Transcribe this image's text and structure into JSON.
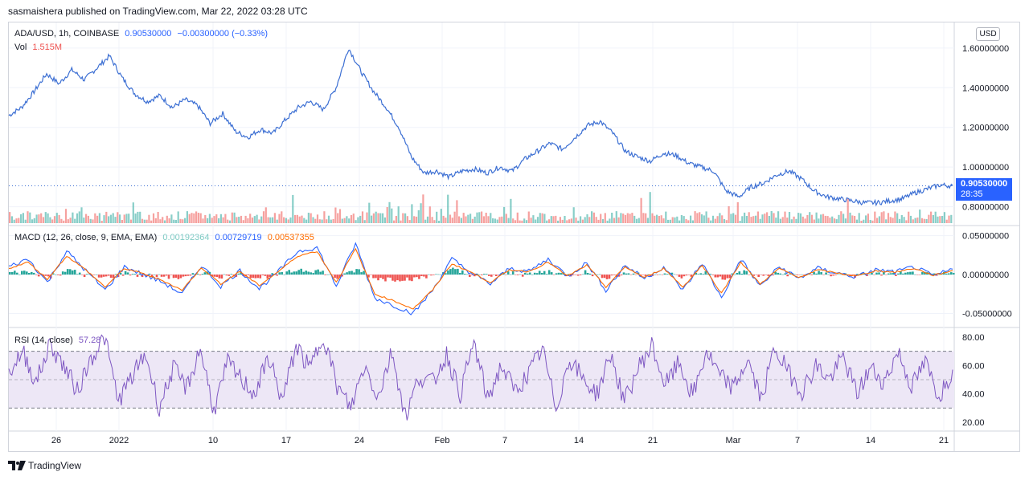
{
  "header": {
    "published": "sasmaishera published on TradingView.com, Mar 22, 2022 03:28 UTC"
  },
  "legend_price": {
    "symbol": "ADA/USD, 1h, COINBASE",
    "last": "0.90530000",
    "change": "−0.00300000 (−0.33%)"
  },
  "legend_vol": {
    "label": "Vol",
    "value": "1.515M"
  },
  "legend_macd": {
    "label": "MACD (12, 26, close, 9, EMA, EMA)",
    "hist": "0.00192364",
    "macd": "0.00729719",
    "signal": "0.00537355"
  },
  "legend_rsi": {
    "label": "RSI (14, close)",
    "value": "57.28"
  },
  "currency_badge": "USD",
  "last_price_tag": {
    "price": "0.90530000",
    "countdown": "28:35"
  },
  "brand": {
    "name": "TradingView"
  },
  "colors": {
    "price_line": "#3c6fd3",
    "macd_line": "#2962ff",
    "signal_line": "#ff6d00",
    "hist_up": "#26a69a",
    "hist_down": "#ef5350",
    "rsi_line": "#7e57c2",
    "rsi_band": "#ede7f6"
  },
  "chart_data": [
    {
      "type": "line",
      "title": "ADA/USD, 1h, COINBASE",
      "x_ticks": [
        "26",
        "2022",
        "10",
        "17",
        "24",
        "Feb",
        "7",
        "14",
        "21",
        "Mar",
        "7",
        "14",
        "21"
      ],
      "y_ticks": [
        "1.60000000",
        "1.40000000",
        "1.20000000",
        "1.00000000",
        "0.80000000"
      ],
      "ylim": [
        0.77,
        1.66
      ],
      "last_value": 0.9053,
      "series": [
        {
          "values": [
            1.26,
            1.3,
            1.38,
            1.47,
            1.42,
            1.49,
            1.44,
            1.5,
            1.56,
            1.45,
            1.37,
            1.33,
            1.36,
            1.3,
            1.34,
            1.31,
            1.22,
            1.27,
            1.18,
            1.15,
            1.19,
            1.17,
            1.24,
            1.3,
            1.33,
            1.29,
            1.4,
            1.6,
            1.48,
            1.38,
            1.3,
            1.2,
            1.05,
            0.97,
            0.98,
            0.95,
            0.98,
            0.99,
            0.97,
            1.0,
            0.98,
            1.04,
            1.08,
            1.12,
            1.09,
            1.15,
            1.21,
            1.23,
            1.17,
            1.08,
            1.05,
            1.03,
            1.07,
            1.06,
            1.02,
            1.0,
            0.98,
            0.88,
            0.85,
            0.9,
            0.92,
            0.96,
            0.98,
            0.94,
            0.88,
            0.85,
            0.84,
            0.83,
            0.82,
            0.82,
            0.83,
            0.84,
            0.87,
            0.89,
            0.91,
            0.905
          ]
        }
      ]
    },
    {
      "type": "bar",
      "title": "Vol",
      "last_value": "1.515M"
    },
    {
      "type": "line",
      "title": "MACD (12, 26, close, 9, EMA, EMA)",
      "y_ticks": [
        "0.05000000",
        "0.00000000",
        "-0.05000000"
      ],
      "ylim": [
        -0.065,
        0.06
      ],
      "series": [
        {
          "name": "MACD",
          "values": [
            0.01,
            0.02,
            -0.01,
            0.03,
            0.005,
            -0.02,
            0.01,
            0.0,
            -0.01,
            -0.025,
            0.012,
            -0.015,
            0.005,
            -0.018,
            0.004,
            0.03,
            0.035,
            -0.015,
            0.04,
            -0.03,
            -0.04,
            -0.05,
            -0.02,
            0.02,
            0.002,
            -0.012,
            0.008,
            0.004,
            0.02,
            -0.002,
            0.015,
            -0.02,
            0.012,
            -0.005,
            0.01,
            -0.02,
            0.015,
            -0.03,
            0.02,
            -0.015,
            0.01,
            -0.005,
            0.008,
            0.002,
            -0.003,
            0.006,
            0.003,
            0.01,
            -0.002,
            0.007
          ]
        },
        {
          "name": "Signal",
          "values": [
            0.008,
            0.016,
            -0.006,
            0.024,
            0.006,
            -0.016,
            0.008,
            0.001,
            -0.008,
            -0.02,
            0.009,
            -0.012,
            0.004,
            -0.014,
            0.004,
            0.024,
            0.03,
            -0.01,
            0.033,
            -0.025,
            -0.034,
            -0.044,
            -0.02,
            0.014,
            0.003,
            -0.01,
            0.006,
            0.004,
            0.016,
            -0.002,
            0.012,
            -0.016,
            0.01,
            -0.004,
            0.008,
            -0.016,
            0.012,
            -0.024,
            0.016,
            -0.012,
            0.008,
            -0.004,
            0.006,
            0.002,
            -0.002,
            0.005,
            0.003,
            0.008,
            -0.001,
            0.005
          ]
        }
      ]
    },
    {
      "type": "line",
      "title": "RSI (14, close)",
      "y_ticks": [
        "80.00",
        "60.00",
        "40.00",
        "20.00"
      ],
      "ylim": [
        15,
        85
      ],
      "bands": [
        30,
        50,
        70
      ],
      "series": [
        {
          "name": "RSI",
          "values": [
            55,
            70,
            48,
            75,
            60,
            42,
            65,
            80,
            35,
            52,
            68,
            30,
            58,
            44,
            72,
            28,
            62,
            50,
            40,
            66,
            35,
            74,
            57,
            82,
            45,
            30,
            60,
            38,
            70,
            24,
            52,
            48,
            68,
            40,
            76,
            36,
            60,
            42,
            54,
            72,
            30,
            65,
            50,
            40,
            68,
            34,
            58,
            74,
            46,
            62,
            38,
            70,
            52,
            44,
            64,
            36,
            72,
            55,
            42,
            60,
            50,
            66,
            40,
            58,
            48,
            70,
            45,
            62,
            38,
            57
          ]
        }
      ]
    }
  ]
}
